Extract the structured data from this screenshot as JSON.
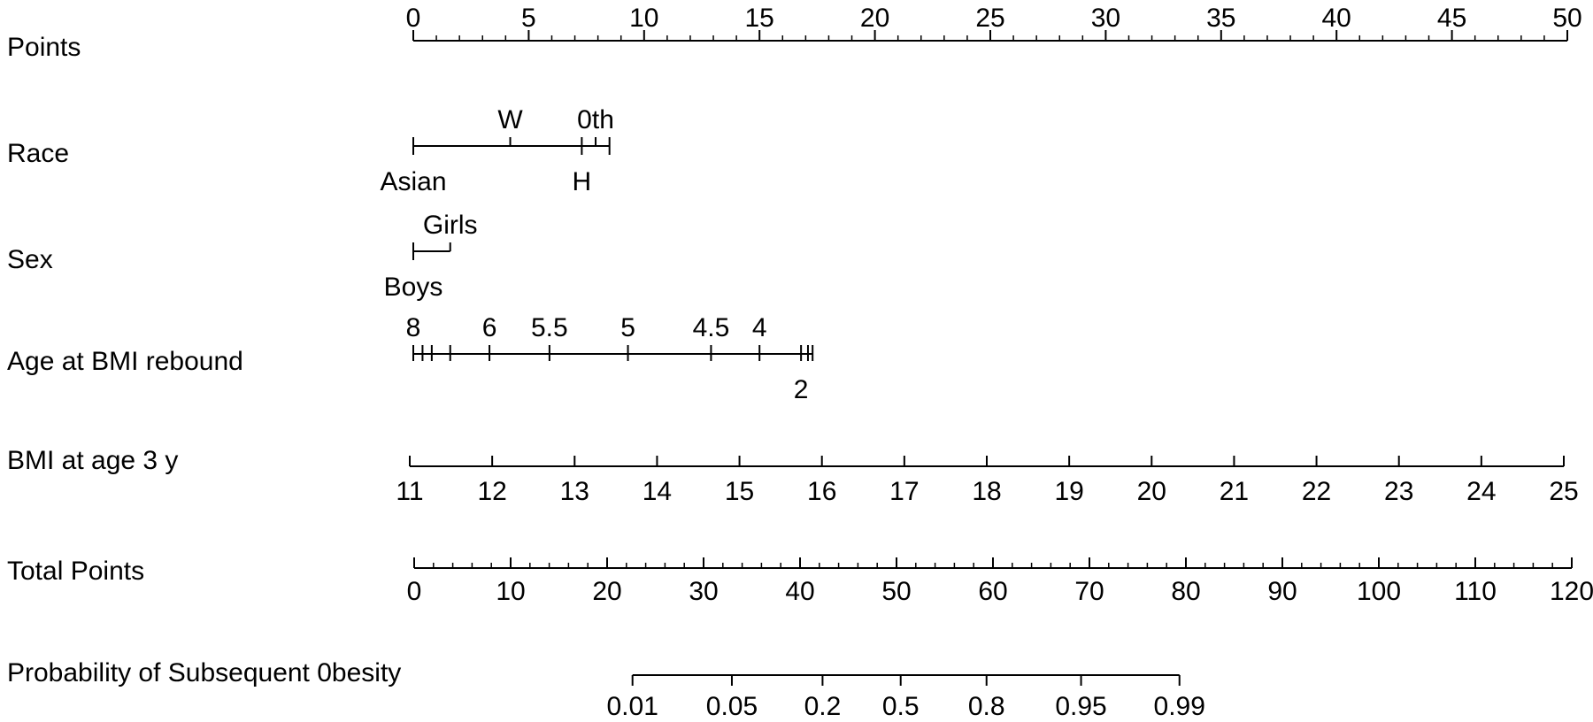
{
  "chart_data": {
    "type": "nomogram",
    "rows": [
      {
        "key": "points",
        "label": "Points",
        "scale": "linear",
        "min": 0,
        "max": 50,
        "ticks": [
          0,
          5,
          10,
          15,
          20,
          25,
          30,
          35,
          40,
          45,
          50
        ],
        "minor_step": 1
      },
      {
        "key": "race",
        "label": "Race",
        "scale": "categorical",
        "items": [
          {
            "label": "Asian",
            "points": 0,
            "side": "below"
          },
          {
            "label": "W",
            "points": 4.2,
            "side": "above"
          },
          {
            "label": "H",
            "points": 7.3,
            "side": "below"
          },
          {
            "label": "0th",
            "points": 7.9,
            "side": "above"
          },
          {
            "label": "",
            "points": 8.5,
            "side": "end"
          }
        ]
      },
      {
        "key": "sex",
        "label": "Sex",
        "scale": "categorical",
        "items": [
          {
            "label": "Boys",
            "points": 0,
            "side": "below"
          },
          {
            "label": "Girls",
            "points": 1.6,
            "side": "above"
          }
        ]
      },
      {
        "key": "age_rebound",
        "label": "Age at BMI rebound",
        "scale": "nonlinear",
        "items": [
          {
            "label": "8",
            "points": 0,
            "side": "above"
          },
          {
            "label": "",
            "points": 0.4,
            "side": "above"
          },
          {
            "label": "",
            "points": 0.8,
            "side": "above"
          },
          {
            "label": "",
            "points": 1.6,
            "side": "above"
          },
          {
            "label": "6",
            "points": 3.3,
            "side": "above"
          },
          {
            "label": "5.5",
            "points": 5.9,
            "side": "above"
          },
          {
            "label": "5",
            "points": 9.3,
            "side": "above"
          },
          {
            "label": "4.5",
            "points": 12.9,
            "side": "above"
          },
          {
            "label": "4",
            "points": 15.0,
            "side": "above"
          },
          {
            "label": "2",
            "points": 16.8,
            "side": "below"
          },
          {
            "label": "",
            "points": 17.1,
            "side": "above"
          },
          {
            "label": "",
            "points": 17.3,
            "side": "above"
          }
        ]
      },
      {
        "key": "bmi3",
        "label": "BMI at age 3 y",
        "scale": "linear",
        "min": 11,
        "max": 25,
        "ticks": [
          11,
          12,
          13,
          14,
          15,
          16,
          17,
          18,
          19,
          20,
          21,
          22,
          23,
          24,
          25
        ],
        "points_range": [
          0,
          50
        ]
      },
      {
        "key": "total_points",
        "label": "Total Points",
        "scale": "linear",
        "min": 0,
        "max": 120,
        "ticks": [
          0,
          10,
          20,
          30,
          40,
          50,
          60,
          70,
          80,
          90,
          100,
          110,
          120
        ],
        "minor_step": 2
      },
      {
        "key": "probability",
        "label": "Probability of Subsequent 0besity",
        "scale": "logit",
        "ticks": [
          {
            "label": "0.01",
            "total_points": 23
          },
          {
            "label": "0.05",
            "total_points": 33.3
          },
          {
            "label": "0.2",
            "total_points": 42.7
          },
          {
            "label": "0.5",
            "total_points": 50.8
          },
          {
            "label": "0.8",
            "total_points": 59.7
          },
          {
            "label": "0.95",
            "total_points": 69.5
          },
          {
            "label": "0.99",
            "total_points": 79.7
          }
        ]
      }
    ]
  }
}
